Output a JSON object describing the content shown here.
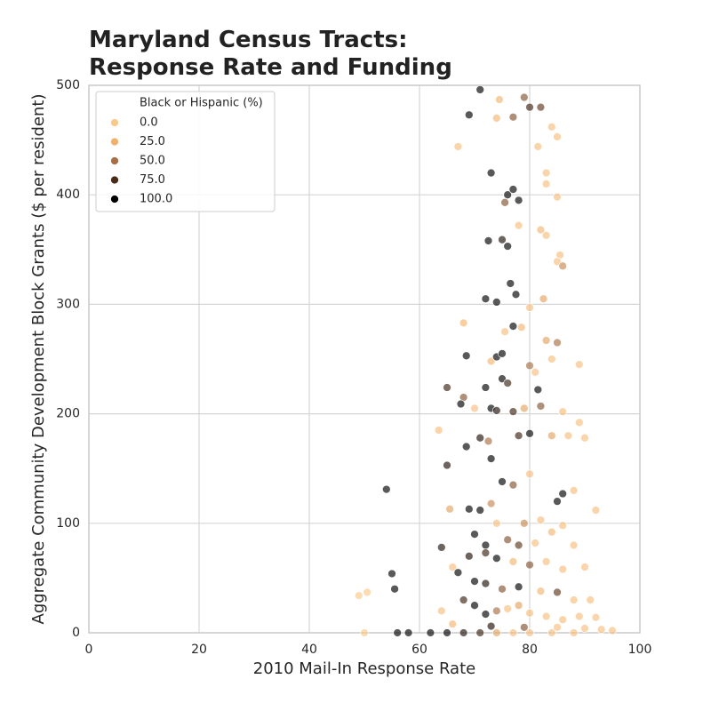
{
  "chart_data": {
    "type": "scatter",
    "title": "Maryland Census Tracts:\nResponse Rate and Funding",
    "x_label": "2010 Mail-In Response Rate",
    "y_label": "Aggregate Community Development Block Grants ($ per resident)",
    "xlim": [
      0,
      100
    ],
    "xticks": [
      0,
      20,
      40,
      60,
      80,
      100
    ],
    "ylim": [
      0,
      500
    ],
    "yticks": [
      0,
      100,
      200,
      300,
      400,
      500
    ],
    "grid": true,
    "x": [
      49,
      50.5,
      50,
      54,
      55,
      55.5,
      65,
      65,
      64,
      63.5,
      71,
      69,
      74,
      74.5,
      77,
      79,
      80,
      82,
      67,
      81.5,
      84,
      85,
      73,
      76,
      77,
      78,
      75.5,
      83,
      83,
      85,
      78,
      82,
      83,
      72.5,
      75,
      76,
      85.5,
      85,
      86,
      68,
      68.5,
      72,
      74,
      76.5,
      77.5,
      80,
      82.5,
      77,
      78.5,
      75.5,
      73,
      74,
      75,
      72,
      75,
      76,
      80,
      81,
      81.5,
      83,
      85,
      84,
      89,
      68,
      67.5,
      70,
      73,
      74,
      77,
      79,
      82,
      86,
      68.5,
      71,
      72.5,
      73,
      78,
      80,
      84,
      87,
      89,
      90,
      75,
      77,
      80,
      85,
      86,
      88,
      92,
      71,
      73,
      69,
      65.5,
      74,
      79,
      82,
      86,
      70,
      72,
      76,
      78,
      81,
      84,
      88,
      66,
      69,
      72,
      74,
      77,
      80,
      83,
      86,
      90,
      67,
      70,
      72,
      75,
      78,
      82,
      85,
      88,
      91,
      64,
      68,
      70,
      72,
      74,
      76,
      78,
      80,
      83,
      86,
      89,
      92,
      93,
      95,
      56,
      58,
      62,
      65,
      68,
      71,
      74,
      77,
      80,
      84,
      88,
      66,
      73,
      79,
      85,
      90
    ],
    "values": [
      34,
      37,
      0,
      131,
      54,
      40,
      224,
      153,
      78,
      185,
      496,
      473,
      470,
      487,
      471,
      489,
      480,
      480,
      444,
      444,
      462,
      453,
      420,
      400,
      405,
      395,
      393,
      420,
      410,
      398,
      372,
      368,
      363,
      358,
      359,
      353,
      345,
      339,
      335,
      283,
      253,
      305,
      302,
      319,
      309,
      297,
      305,
      280,
      279,
      275,
      248,
      252,
      255,
      224,
      232,
      228,
      244,
      238,
      222,
      267,
      265,
      250,
      245,
      215,
      209,
      205,
      205,
      203,
      202,
      205,
      207,
      202,
      170,
      178,
      175,
      159,
      180,
      182,
      180,
      180,
      192,
      178,
      138,
      135,
      145,
      120,
      127,
      130,
      112,
      112,
      118,
      113,
      113,
      100,
      100,
      103,
      98,
      90,
      80,
      85,
      80,
      82,
      92,
      80,
      60,
      70,
      73,
      68,
      65,
      62,
      65,
      58,
      60,
      55,
      47,
      45,
      40,
      42,
      38,
      37,
      30,
      30,
      20,
      30,
      25,
      17,
      20,
      22,
      25,
      18,
      15,
      12,
      15,
      14,
      3,
      2,
      0,
      0,
      0,
      0,
      0,
      0,
      0,
      0,
      0,
      0,
      0,
      8,
      6,
      5,
      5,
      4
    ],
    "hue": [
      0,
      0,
      0,
      100,
      100,
      100,
      80,
      90,
      90,
      10,
      100,
      100,
      20,
      20,
      60,
      60,
      80,
      70,
      10,
      10,
      10,
      10,
      100,
      100,
      100,
      100,
      60,
      10,
      10,
      10,
      10,
      20,
      10,
      100,
      90,
      100,
      10,
      10,
      40,
      20,
      100,
      100,
      100,
      100,
      100,
      10,
      30,
      100,
      20,
      10,
      20,
      100,
      100,
      100,
      100,
      80,
      50,
      10,
      100,
      30,
      50,
      10,
      10,
      60,
      100,
      10,
      100,
      90,
      80,
      30,
      60,
      10,
      100,
      90,
      50,
      100,
      80,
      100,
      30,
      10,
      10,
      10,
      100,
      60,
      10,
      100,
      100,
      10,
      10,
      100,
      40,
      100,
      30,
      10,
      40,
      10,
      10,
      100,
      100,
      60,
      70,
      10,
      20,
      10,
      10,
      90,
      80,
      100,
      20,
      60,
      10,
      10,
      10,
      100,
      100,
      90,
      60,
      100,
      20,
      70,
      10,
      10,
      10,
      80,
      100,
      100,
      50,
      10,
      30,
      10,
      10,
      10,
      10,
      10,
      10,
      10,
      100,
      100,
      100,
      100,
      90,
      80,
      30,
      10,
      10,
      10,
      10,
      20,
      90,
      60,
      10,
      10
    ],
    "legend": {
      "title": "Black or Hispanic (%)",
      "position": "upper left",
      "entries": [
        {
          "value": 0,
          "label": "0.0"
        },
        {
          "value": 25,
          "label": "25.0"
        },
        {
          "value": 50,
          "label": "50.0"
        },
        {
          "value": 75,
          "label": "75.0"
        },
        {
          "value": 100,
          "label": "100.0"
        }
      ],
      "colors": [
        "#f9c98b",
        "#f3b06a",
        "#a86e45",
        "#4b2a18",
        "#000000"
      ]
    }
  }
}
